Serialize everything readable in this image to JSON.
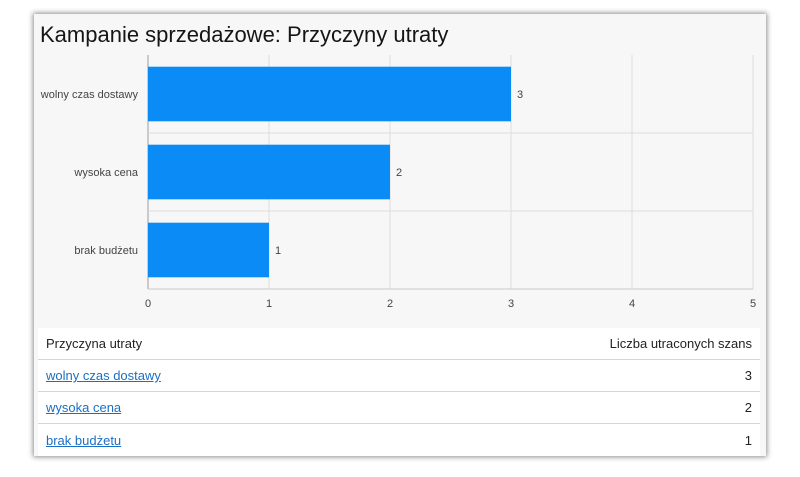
{
  "chart_data": {
    "type": "bar",
    "orientation": "horizontal",
    "title": "Kampanie sprzedażowe: Przyczyny utraty",
    "categories": [
      "wolny czas dostawy",
      "wysoka cena",
      "brak budżetu"
    ],
    "values": [
      3,
      2,
      1
    ],
    "xlim": [
      0,
      5
    ],
    "xticks": [
      0,
      1,
      2,
      3,
      4,
      5
    ],
    "show_value_labels": true,
    "grid": true,
    "legend": "none"
  },
  "colors": {
    "bar": "#0b8bf5",
    "link": "#1a6fc4"
  },
  "table": {
    "headers": {
      "reason": "Przyczyna utraty",
      "count": "Liczba utraconych szans"
    },
    "rows": [
      {
        "reason": "wolny czas dostawy",
        "count": "3"
      },
      {
        "reason": "wysoka cena",
        "count": "2"
      },
      {
        "reason": "brak budżetu",
        "count": "1"
      }
    ]
  }
}
